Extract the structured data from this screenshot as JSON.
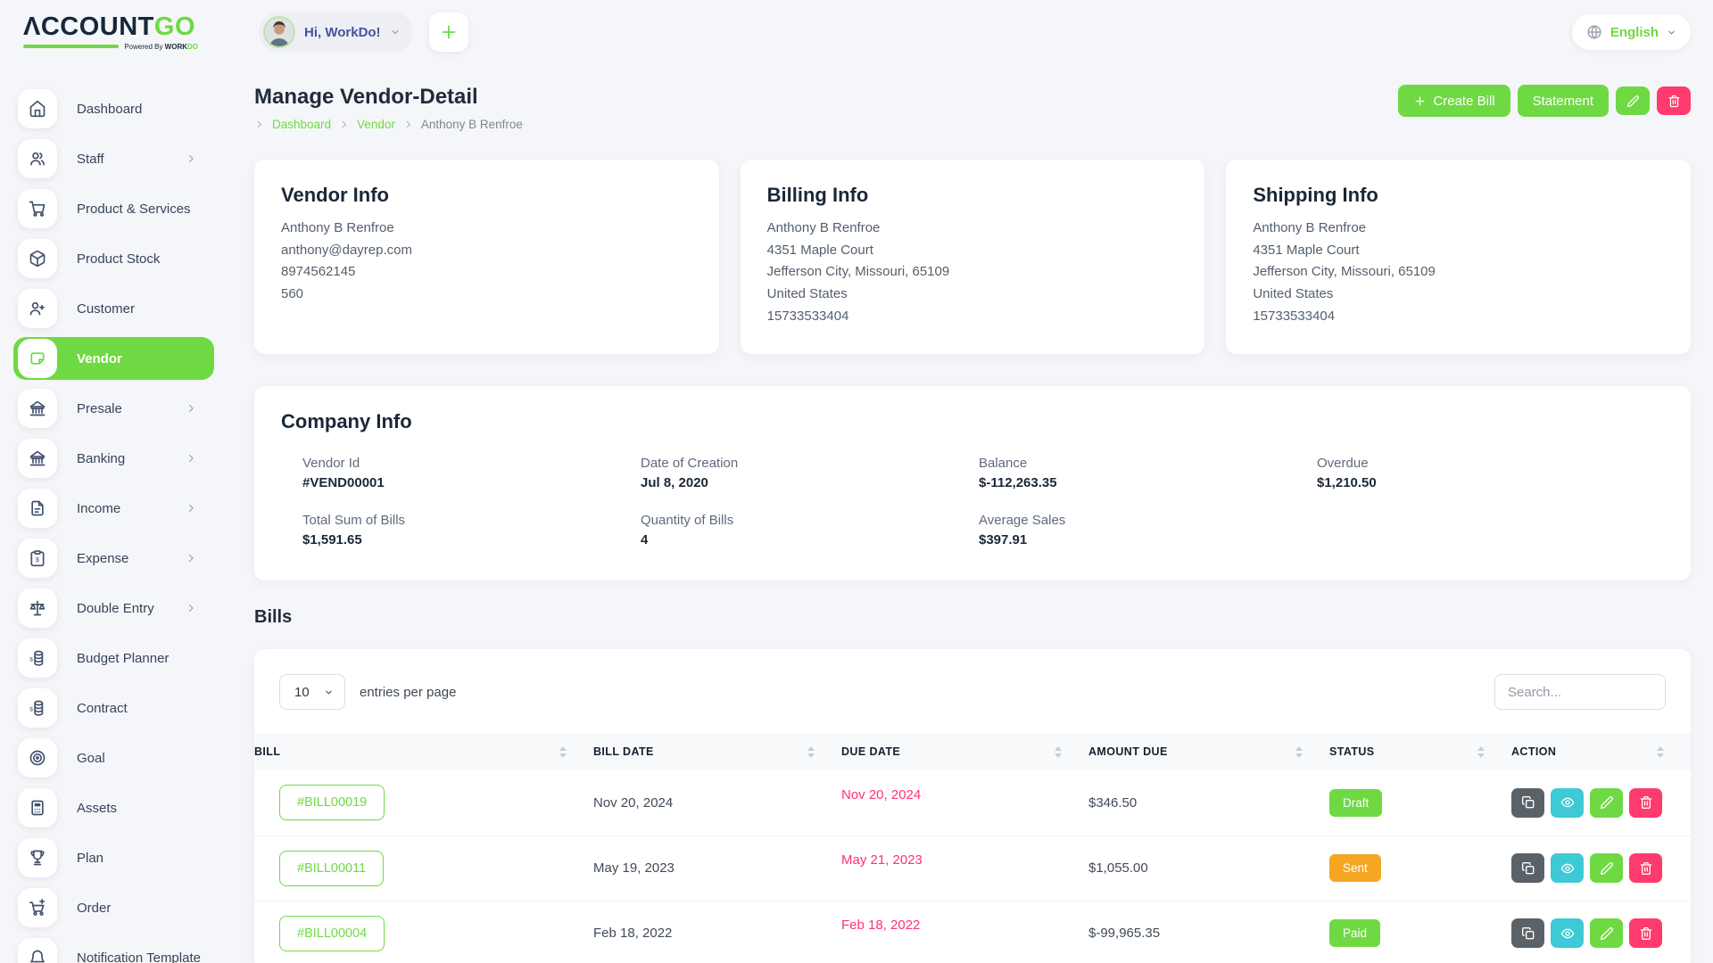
{
  "colors": {
    "primary": "#6fd943",
    "danger": "#ff3a6e",
    "info": "#3ec9d6",
    "warning": "#f5a623",
    "dark_button": "#5a6268",
    "due_date": "#ff316e"
  },
  "brand": {
    "name_primary": "ΛCCOUNT",
    "name_accent": "GO",
    "tagline_prefix": "Powered By ",
    "tagline_brand": "WORK",
    "tagline_accent": "DO"
  },
  "header": {
    "greeting": "Hi, WorkDo!",
    "greeting_chevron_icon": "chevron-down-icon",
    "add_button_icon": "plus-icon",
    "language": {
      "label": "English",
      "globe_icon": "globe-icon",
      "chevron_icon": "chevron-down-icon"
    }
  },
  "sidebar": {
    "submenu_icon": "chevron-right-icon",
    "items": [
      {
        "label": "Dashboard",
        "icon": "home-icon",
        "has_submenu": false,
        "active": false
      },
      {
        "label": "Staff",
        "icon": "staff-icon",
        "has_submenu": true,
        "active": false
      },
      {
        "label": "Product & Services",
        "icon": "products-icon",
        "has_submenu": false,
        "active": false
      },
      {
        "label": "Product Stock",
        "icon": "stock-icon",
        "has_submenu": false,
        "active": false
      },
      {
        "label": "Customer",
        "icon": "customer-icon",
        "has_submenu": false,
        "active": false
      },
      {
        "label": "Vendor",
        "icon": "vendor-icon",
        "has_submenu": false,
        "active": true
      },
      {
        "label": "Presale",
        "icon": "presale-icon",
        "has_submenu": true,
        "active": false
      },
      {
        "label": "Banking",
        "icon": "banking-icon",
        "has_submenu": true,
        "active": false
      },
      {
        "label": "Income",
        "icon": "income-icon",
        "has_submenu": true,
        "active": false
      },
      {
        "label": "Expense",
        "icon": "expense-icon",
        "has_submenu": true,
        "active": false
      },
      {
        "label": "Double Entry",
        "icon": "double-entry-icon",
        "has_submenu": true,
        "active": false
      },
      {
        "label": "Budget Planner",
        "icon": "budget-icon",
        "has_submenu": false,
        "active": false
      },
      {
        "label": "Contract",
        "icon": "contract-icon",
        "has_submenu": false,
        "active": false
      },
      {
        "label": "Goal",
        "icon": "goal-icon",
        "has_submenu": false,
        "active": false
      },
      {
        "label": "Assets",
        "icon": "assets-icon",
        "has_submenu": false,
        "active": false
      },
      {
        "label": "Plan",
        "icon": "plan-icon",
        "has_submenu": false,
        "active": false
      },
      {
        "label": "Order",
        "icon": "order-icon",
        "has_submenu": false,
        "active": false
      },
      {
        "label": "Notification Template",
        "icon": "notification-icon",
        "has_submenu": false,
        "active": false
      }
    ]
  },
  "page": {
    "title": "Manage Vendor-Detail",
    "breadcrumb_separator_icon": "chevron-right-icon",
    "breadcrumb": [
      {
        "label": "Dashboard",
        "type": "link"
      },
      {
        "label": "Vendor",
        "type": "link"
      },
      {
        "label": "Anthony B Renfroe",
        "type": "current"
      }
    ],
    "actions": {
      "create_bill_label": "Create Bill",
      "create_bill_icon": "plus-icon",
      "statement_label": "Statement",
      "edit_icon": "pencil-icon",
      "delete_icon": "trash-icon"
    }
  },
  "cards": {
    "vendor_info": {
      "title": "Vendor Info",
      "lines": [
        "Anthony B Renfroe",
        "anthony@dayrep.com",
        "8974562145",
        "560"
      ]
    },
    "billing_info": {
      "title": "Billing Info",
      "lines": [
        "Anthony B Renfroe",
        "4351 Maple Court",
        "Jefferson City, Missouri, 65109",
        "United States",
        "15733533404"
      ]
    },
    "shipping_info": {
      "title": "Shipping Info",
      "lines": [
        "Anthony B Renfroe",
        "4351 Maple Court",
        "Jefferson City, Missouri, 65109",
        "United States",
        "15733533404"
      ]
    },
    "company_info": {
      "title": "Company Info",
      "fields": [
        {
          "label": "Vendor Id",
          "value": "#VEND00001"
        },
        {
          "label": "Date of Creation",
          "value": "Jul 8, 2020"
        },
        {
          "label": "Balance",
          "value": "$-112,263.35"
        },
        {
          "label": "Overdue",
          "value": "$1,210.50"
        },
        {
          "label": "Total Sum of Bills",
          "value": "$1,591.65"
        },
        {
          "label": "Quantity of Bills",
          "value": "4"
        },
        {
          "label": "Average Sales",
          "value": "$397.91"
        }
      ]
    }
  },
  "bills": {
    "section_title": "Bills",
    "entries_per_page": {
      "selected": "10",
      "label": "entries per page",
      "chevron_icon": "chevron-down-icon"
    },
    "search_placeholder": "Search...",
    "columns": [
      {
        "label": "BILL"
      },
      {
        "label": "BILL DATE"
      },
      {
        "label": "DUE DATE"
      },
      {
        "label": "AMOUNT DUE"
      },
      {
        "label": "STATUS"
      },
      {
        "label": "ACTION"
      }
    ],
    "row_actions": [
      {
        "name": "duplicate",
        "icon": "copy-icon"
      },
      {
        "name": "view",
        "icon": "eye-icon"
      },
      {
        "name": "edit",
        "icon": "pencil-icon"
      },
      {
        "name": "delete",
        "icon": "trash-icon"
      }
    ],
    "rows": [
      {
        "bill": "#BILL00019",
        "bill_date": "Nov 20, 2024",
        "due_date": "Nov 20, 2024",
        "amount_due": "$346.50",
        "status": "Draft",
        "status_color": "#6fd943"
      },
      {
        "bill": "#BILL00011",
        "bill_date": "May 19, 2023",
        "due_date": "May 21, 2023",
        "amount_due": "$1,055.00",
        "status": "Sent",
        "status_color": "#f5a623"
      },
      {
        "bill": "#BILL00004",
        "bill_date": "Feb 18, 2022",
        "due_date": "Feb 18, 2022",
        "amount_due": "$-99,965.35",
        "status": "Paid",
        "status_color": "#6fd943"
      }
    ]
  }
}
